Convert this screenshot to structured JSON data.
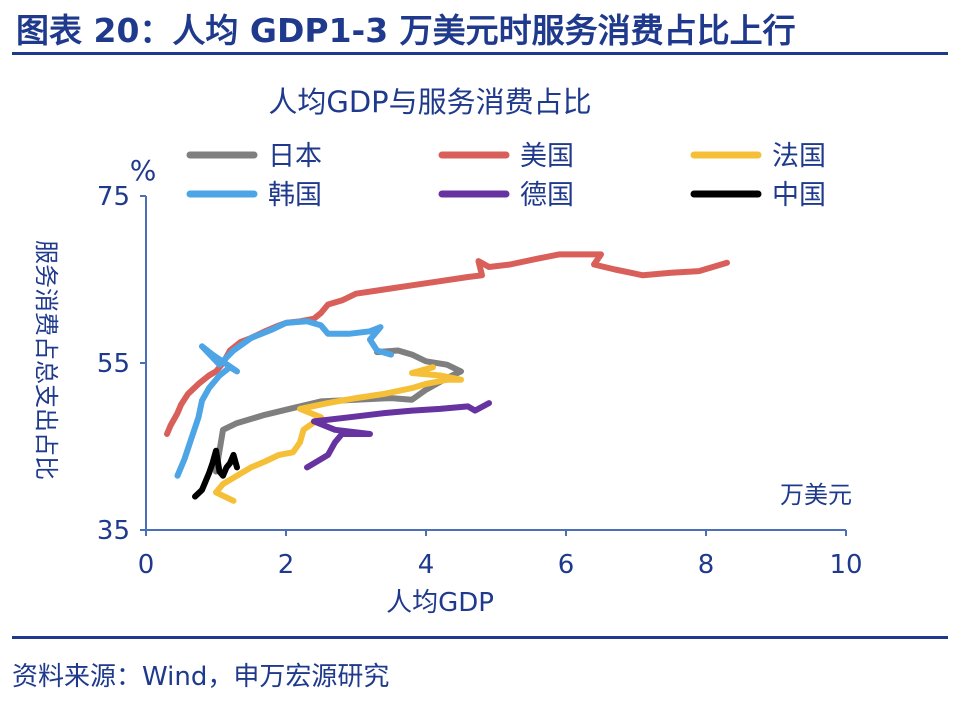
{
  "figure": {
    "title": "图表 20：人均 GDP1-3 万美元时服务消费占比上行",
    "source": "资料来源：Wind，申万宏源研究"
  },
  "chart_data": {
    "type": "line",
    "title": "人均GDP与服务消费占比",
    "xlabel": "人均GDP",
    "ylabel": "服务消费占总支出占比",
    "y_unit": "%",
    "x_unit": "万美元",
    "xlim": [
      0,
      10
    ],
    "ylim": [
      35,
      75
    ],
    "x_ticks": [
      "0",
      "2",
      "4",
      "6",
      "8",
      "10"
    ],
    "y_ticks": [
      "35",
      "55",
      "75"
    ],
    "grid": false,
    "legend": "top",
    "series": [
      {
        "name": "日本",
        "color": "#7f7f7f",
        "points": [
          [
            1.0,
            42.0
          ],
          [
            1.05,
            44.5
          ],
          [
            1.1,
            47.0
          ],
          [
            1.3,
            47.8
          ],
          [
            1.7,
            48.8
          ],
          [
            2.1,
            49.6
          ],
          [
            2.5,
            50.4
          ],
          [
            3.0,
            50.6
          ],
          [
            3.5,
            50.8
          ],
          [
            3.8,
            50.6
          ],
          [
            4.0,
            51.8
          ],
          [
            4.3,
            53.2
          ],
          [
            4.5,
            54.0
          ],
          [
            4.3,
            54.8
          ],
          [
            4.0,
            55.2
          ],
          [
            3.8,
            56.0
          ],
          [
            3.6,
            56.5
          ],
          [
            3.3,
            56.3
          ]
        ]
      },
      {
        "name": "美国",
        "color": "#d9605a",
        "points": [
          [
            0.3,
            46.5
          ],
          [
            0.35,
            47.5
          ],
          [
            0.45,
            49.0
          ],
          [
            0.5,
            50.0
          ],
          [
            0.6,
            51.3
          ],
          [
            0.75,
            52.5
          ],
          [
            0.9,
            53.5
          ],
          [
            1.0,
            54.0
          ],
          [
            1.1,
            55.0
          ],
          [
            1.2,
            56.5
          ],
          [
            1.35,
            57.5
          ],
          [
            1.5,
            58.0
          ],
          [
            1.7,
            58.8
          ],
          [
            1.9,
            59.5
          ],
          [
            2.0,
            59.8
          ],
          [
            2.2,
            60.0
          ],
          [
            2.4,
            60.3
          ],
          [
            2.5,
            61.0
          ],
          [
            2.6,
            62.0
          ],
          [
            2.8,
            62.5
          ],
          [
            3.0,
            63.3
          ],
          [
            3.4,
            63.8
          ],
          [
            3.8,
            64.3
          ],
          [
            4.2,
            64.8
          ],
          [
            4.6,
            65.3
          ],
          [
            4.8,
            65.5
          ],
          [
            4.75,
            67.2
          ],
          [
            4.9,
            66.5
          ],
          [
            5.2,
            66.8
          ],
          [
            5.6,
            67.5
          ],
          [
            5.9,
            68.0
          ],
          [
            6.2,
            68.0
          ],
          [
            6.5,
            68.0
          ],
          [
            6.4,
            66.8
          ],
          [
            6.7,
            66.2
          ],
          [
            7.1,
            65.5
          ],
          [
            7.5,
            65.8
          ],
          [
            7.9,
            66.0
          ],
          [
            8.3,
            67.0
          ]
        ]
      },
      {
        "name": "法国",
        "color": "#f5c038",
        "points": [
          [
            1.25,
            38.5
          ],
          [
            1.0,
            39.5
          ],
          [
            1.1,
            40.5
          ],
          [
            1.3,
            41.5
          ],
          [
            1.5,
            42.5
          ],
          [
            1.7,
            43.2
          ],
          [
            1.9,
            44.0
          ],
          [
            2.1,
            44.3
          ],
          [
            2.2,
            45.5
          ],
          [
            2.25,
            47.0
          ],
          [
            2.5,
            48.5
          ],
          [
            2.2,
            49.5
          ],
          [
            2.6,
            50.2
          ],
          [
            3.0,
            50.8
          ],
          [
            3.4,
            51.3
          ],
          [
            3.8,
            52.0
          ],
          [
            4.0,
            52.5
          ],
          [
            4.3,
            53.0
          ],
          [
            4.5,
            53.0
          ],
          [
            4.2,
            53.5
          ],
          [
            3.8,
            53.8
          ],
          [
            4.1,
            54.5
          ]
        ]
      },
      {
        "name": "韩国",
        "color": "#4da5e6",
        "points": [
          [
            0.45,
            41.5
          ],
          [
            0.55,
            43.5
          ],
          [
            0.65,
            46.0
          ],
          [
            0.75,
            48.5
          ],
          [
            0.8,
            50.5
          ],
          [
            0.9,
            52.0
          ],
          [
            1.05,
            53.5
          ],
          [
            1.2,
            54.5
          ],
          [
            1.3,
            54.0
          ],
          [
            0.95,
            56.0
          ],
          [
            0.8,
            57.0
          ],
          [
            1.05,
            54.8
          ],
          [
            1.25,
            56.5
          ],
          [
            1.5,
            58.0
          ],
          [
            1.8,
            59.0
          ],
          [
            2.0,
            59.8
          ],
          [
            2.3,
            60.0
          ],
          [
            2.5,
            59.5
          ],
          [
            2.6,
            58.5
          ],
          [
            2.9,
            58.5
          ],
          [
            3.2,
            58.8
          ],
          [
            3.35,
            59.3
          ],
          [
            3.2,
            57.8
          ],
          [
            3.3,
            56.5
          ],
          [
            3.5,
            56.0
          ]
        ]
      },
      {
        "name": "德国",
        "color": "#6633a0",
        "points": [
          [
            2.3,
            42.5
          ],
          [
            2.6,
            44.0
          ],
          [
            2.7,
            45.5
          ],
          [
            2.8,
            46.5
          ],
          [
            3.2,
            46.5
          ],
          [
            2.7,
            47.0
          ],
          [
            2.4,
            48.0
          ],
          [
            2.9,
            48.5
          ],
          [
            3.4,
            49.0
          ],
          [
            3.8,
            49.3
          ],
          [
            4.2,
            49.5
          ],
          [
            4.6,
            49.8
          ],
          [
            4.7,
            49.3
          ],
          [
            4.9,
            50.2
          ]
        ]
      },
      {
        "name": "中国",
        "color": "#000000",
        "points": [
          [
            0.7,
            39.0
          ],
          [
            0.8,
            39.8
          ],
          [
            0.85,
            40.8
          ],
          [
            0.9,
            41.8
          ],
          [
            0.95,
            43.0
          ],
          [
            1.0,
            44.5
          ],
          [
            1.05,
            42.0
          ],
          [
            1.1,
            41.5
          ],
          [
            1.15,
            42.5
          ],
          [
            1.2,
            43.0
          ],
          [
            1.25,
            44.0
          ],
          [
            1.3,
            42.5
          ]
        ]
      }
    ]
  }
}
